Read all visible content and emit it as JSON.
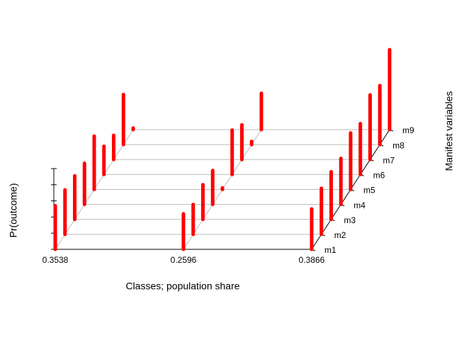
{
  "chart_data": {
    "type": "bar3d",
    "xlabel": "Classes; population share",
    "ylabel": "Manifest variables",
    "zlabel": "Pr(outcome)",
    "categories": [
      "0.3538",
      "0.2596",
      "0.3866"
    ],
    "depth_categories": [
      "m1",
      "m2",
      "m3",
      "m4",
      "m5",
      "m6",
      "m7",
      "m8",
      "m9"
    ],
    "values": [
      [
        0.54,
        0.55,
        0.54,
        0.51,
        0.66,
        0.35,
        0.3,
        0.62,
        0.02
      ],
      [
        0.44,
        0.37,
        0.43,
        0.42,
        0.02,
        0.55,
        0.43,
        0.04,
        0.45
      ],
      [
        0.5,
        0.57,
        0.59,
        0.57,
        0.7,
        0.63,
        0.8,
        0.73,
        0.99
      ]
    ],
    "color": "#ff0000",
    "zlim": [
      0,
      1
    ],
    "zticks": [
      0,
      0.2,
      0.4,
      0.6,
      0.8,
      1
    ]
  }
}
